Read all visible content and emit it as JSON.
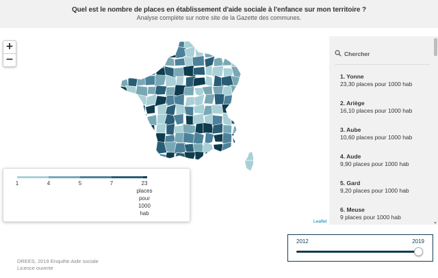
{
  "header": {
    "title": "Quel est le nombre de places en établissement d'aide sociale à l'enfance sur mon territoire ?",
    "subtitle": "Analyse complète sur notre site de la Gazette des communes."
  },
  "map": {
    "zoom_in": "+",
    "zoom_out": "−",
    "attribution": "Leaflet",
    "legend": {
      "ticks": [
        "1",
        "4",
        "5",
        "7",
        "23"
      ],
      "unit": [
        "places",
        "pour",
        "1000",
        "hab"
      ],
      "colors": [
        "#a9d0d7",
        "#79a8b5",
        "#4c8199",
        "#295d75",
        "#0f3b4e"
      ]
    },
    "palette": [
      "#a9d0d7",
      "#79a8b5",
      "#4c8199",
      "#295d75",
      "#0f3b4e"
    ]
  },
  "sidebar": {
    "search_placeholder": "Chercher",
    "items": [
      {
        "name": "1. Yonne",
        "value": "23,30 places pour 1000 hab"
      },
      {
        "name": "2. Ariège",
        "value": "16,10 places pour 1000 hab"
      },
      {
        "name": "3. Aube",
        "value": "10,60 places pour 1000 hab"
      },
      {
        "name": "4. Aude",
        "value": "9,90 places pour 1000 hab"
      },
      {
        "name": "5. Gard",
        "value": "9,20 places pour 1000 hab"
      },
      {
        "name": "6. Meuse",
        "value": "9 places pour 1000 hab"
      }
    ]
  },
  "timeline": {
    "start": "2012",
    "end": "2019",
    "selected_fraction": 1.0
  },
  "source": {
    "line1": "DREES, 2019 Enquête Aide sociale",
    "line2": "Licence ouverte"
  }
}
